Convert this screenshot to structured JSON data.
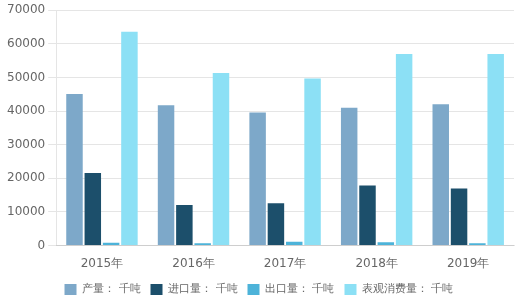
{
  "chart_data": {
    "type": "bar",
    "categories": [
      "2015年",
      "2016年",
      "2017年",
      "2018年",
      "2019年"
    ],
    "series": [
      {
        "name": "产量： 千吨",
        "color": "#7DA8C9",
        "values": [
          45100,
          41700,
          39600,
          41000,
          42000
        ]
      },
      {
        "name": "进口量： 千吨",
        "color": "#1C4F6B",
        "values": [
          21600,
          12100,
          12600,
          17900,
          17000
        ]
      },
      {
        "name": "出口量： 千吨",
        "color": "#4DB3D9",
        "values": [
          830,
          729,
          1120,
          986,
          730
        ]
      },
      {
        "name": "表观消费量： 千吨",
        "color": "#8CE0F5",
        "values": [
          63600,
          51300,
          49700,
          57000,
          57000
        ]
      }
    ],
    "ylim": [
      0,
      70000
    ],
    "yticks": [
      0,
      10000,
      20000,
      30000,
      40000,
      50000,
      60000,
      70000
    ],
    "grid": true,
    "legend": "bottom"
  }
}
